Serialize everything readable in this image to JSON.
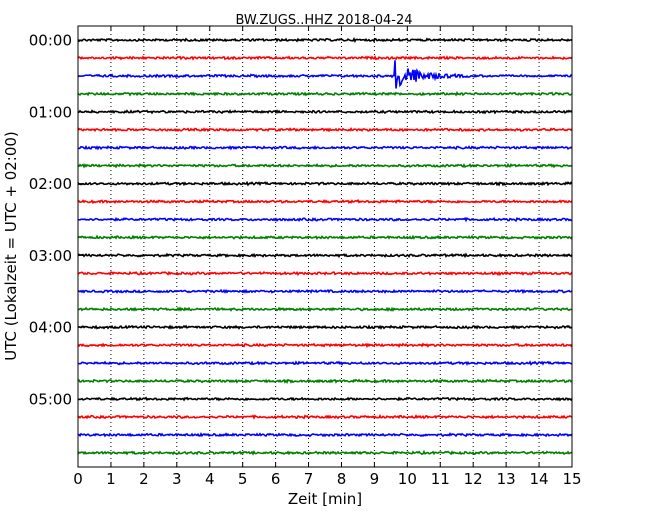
{
  "chart_data": {
    "type": "line",
    "title": "BW.ZUGS..HHZ 2018-04-24",
    "xlabel": "Zeit  [min]",
    "ylabel": "UTC (Lokalzeit = UTC + 02:00)",
    "xlim": [
      0,
      15
    ],
    "x_ticks": [
      0,
      1,
      2,
      3,
      4,
      5,
      6,
      7,
      8,
      9,
      10,
      11,
      12,
      13,
      14,
      15
    ],
    "x_tick_labels": [
      "0",
      "1",
      "2",
      "3",
      "4",
      "5",
      "6",
      "7",
      "8",
      "9",
      "10",
      "11",
      "12",
      "13",
      "14",
      "15"
    ],
    "grid": "vertical dotted",
    "trace_interval_min": 15,
    "y_tick_labels": [
      "00:00",
      "01:00",
      "02:00",
      "03:00",
      "04:00",
      "05:00"
    ],
    "trace_colors": [
      "#000000",
      "#ff0000",
      "#0000ff",
      "#008000"
    ],
    "traces": [
      {
        "start": "00:00",
        "color": "#000000"
      },
      {
        "start": "00:15",
        "color": "#ff0000"
      },
      {
        "start": "00:30",
        "color": "#0000ff",
        "event": {
          "onset_min": 9.6,
          "peak_amplitude": 1.0,
          "coda_end_min": 12.0
        }
      },
      {
        "start": "00:45",
        "color": "#008000"
      },
      {
        "start": "01:00",
        "color": "#000000"
      },
      {
        "start": "01:15",
        "color": "#ff0000"
      },
      {
        "start": "01:30",
        "color": "#0000ff"
      },
      {
        "start": "01:45",
        "color": "#008000"
      },
      {
        "start": "02:00",
        "color": "#000000"
      },
      {
        "start": "02:15",
        "color": "#ff0000"
      },
      {
        "start": "02:30",
        "color": "#0000ff"
      },
      {
        "start": "02:45",
        "color": "#008000"
      },
      {
        "start": "03:00",
        "color": "#000000"
      },
      {
        "start": "03:15",
        "color": "#ff0000"
      },
      {
        "start": "03:30",
        "color": "#0000ff"
      },
      {
        "start": "03:45",
        "color": "#008000"
      },
      {
        "start": "04:00",
        "color": "#000000"
      },
      {
        "start": "04:15",
        "color": "#ff0000"
      },
      {
        "start": "04:30",
        "color": "#0000ff"
      },
      {
        "start": "04:45",
        "color": "#008000"
      },
      {
        "start": "05:00",
        "color": "#000000"
      },
      {
        "start": "05:15",
        "color": "#ff0000"
      },
      {
        "start": "05:30",
        "color": "#0000ff"
      },
      {
        "start": "05:45",
        "color": "#008000"
      }
    ]
  }
}
